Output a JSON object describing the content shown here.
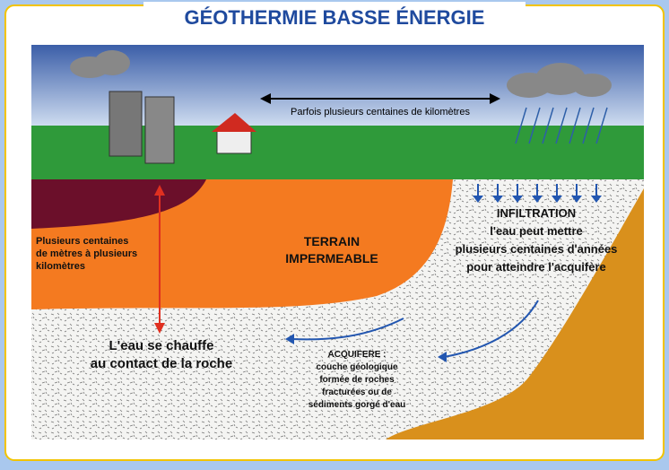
{
  "title": "GÉOTHERMIE BASSE ÉNERGIE",
  "distance_label": "Parfois plusieurs centaines de kilomètres",
  "depth_label": [
    "Plusieurs centaines",
    "de mètres à plusieurs",
    "kilomètres"
  ],
  "terrain_label": [
    "TERRAIN",
    "IMPERMEABLE"
  ],
  "infiltration_label": [
    "INFILTRATION",
    "l'eau peut mettre",
    "plusieurs centaines d'années",
    "pour atteindre l'acquifère"
  ],
  "heating_label": [
    "L'eau se chauffe",
    "au contact de la roche"
  ],
  "aquifer_label": [
    "ACQUIFERE :",
    "couche géologique",
    "formée de roches",
    "fracturées ou de",
    "sédiments gorgé d'eau"
  ]
}
